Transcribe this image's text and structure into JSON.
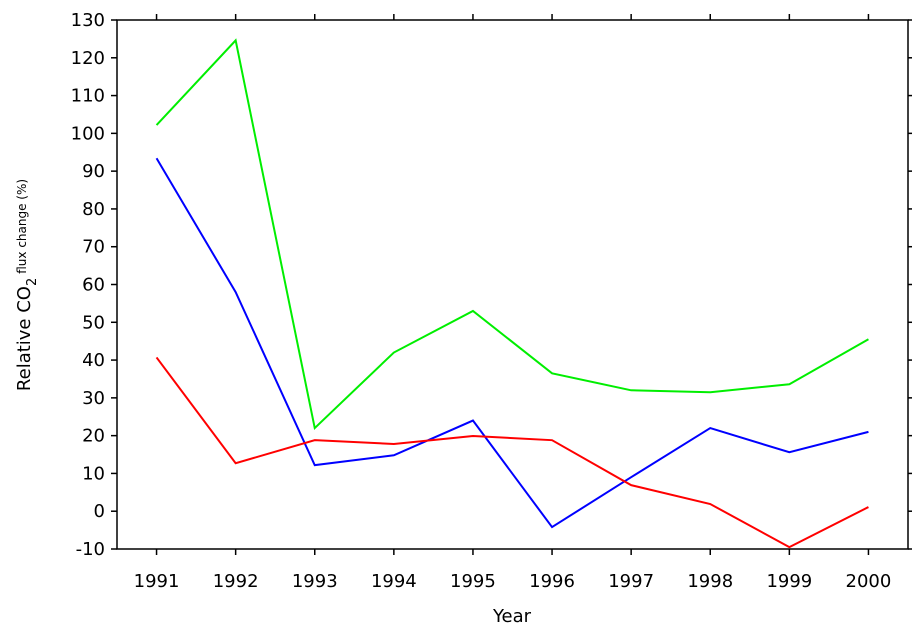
{
  "chart_data": {
    "type": "line",
    "y_label": {
      "main": "Relative CO",
      "sub": "2",
      "small": "flux change (%)"
    },
    "x_label": "Year",
    "x": [
      1991,
      1992,
      1993,
      1994,
      1995,
      1996,
      1997,
      1998,
      1999,
      2000
    ],
    "xlim": [
      1990.5,
      2000.5
    ],
    "xticks": [
      1991,
      1992,
      1993,
      1994,
      1995,
      1996,
      1997,
      1998,
      1999,
      2000
    ],
    "ylim": [
      -10,
      130
    ],
    "yticks": [
      -10,
      0,
      10,
      20,
      30,
      40,
      50,
      60,
      70,
      80,
      90,
      100,
      110,
      120,
      130
    ],
    "series": [
      {
        "color": "#00ee00",
        "values": [
          102.2,
          124.6,
          22,
          42,
          53,
          36.5,
          32,
          31.5,
          33.6,
          45.5
        ]
      },
      {
        "color": "#0000ff",
        "values": [
          93.4,
          58,
          12.2,
          14.8,
          24,
          -4.2,
          9,
          22,
          15.6,
          21
        ]
      },
      {
        "color": "#ff0000",
        "values": [
          40.7,
          12.7,
          18.8,
          17.8,
          19.9,
          18.8,
          6.9,
          1.9,
          -9.5,
          1.1
        ]
      }
    ]
  }
}
